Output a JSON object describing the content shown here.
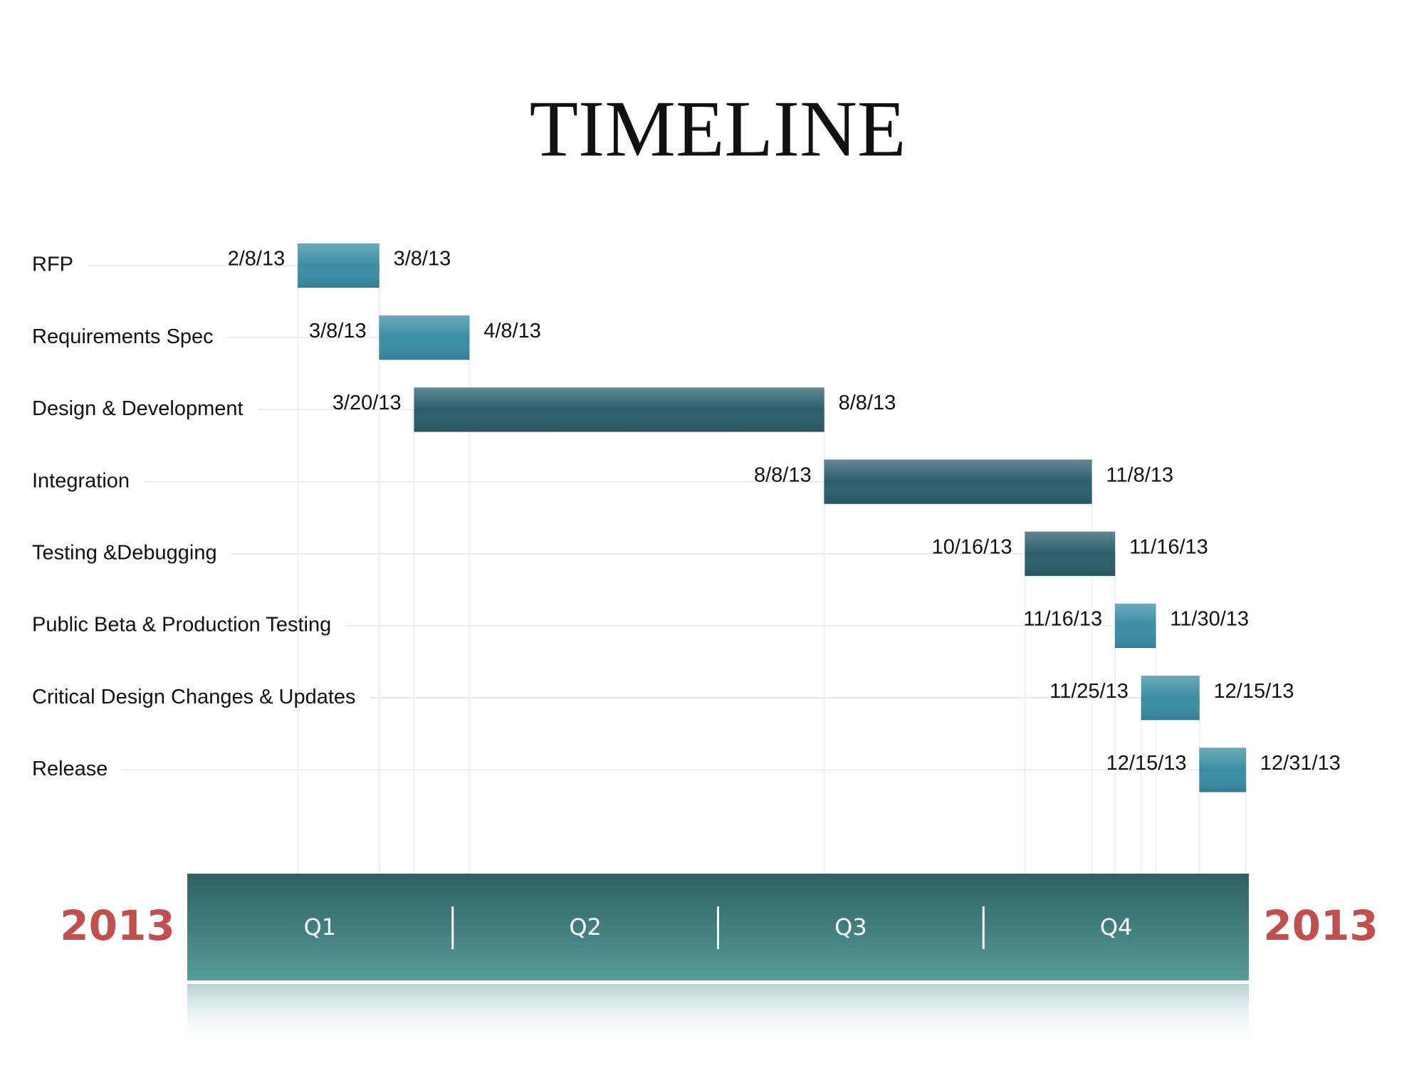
{
  "chart_data": {
    "type": "gantt",
    "title": "TIMELINE",
    "tasks": [
      {
        "name": "RFP",
        "start": "2/8/13",
        "end": "3/8/13",
        "color": "#3a8ea5"
      },
      {
        "name": "Requirements Spec",
        "start": "3/8/13",
        "end": "4/8/13",
        "color": "#3a8ea5"
      },
      {
        "name": "Design & Development",
        "start": "3/20/13",
        "end": "8/8/13",
        "color": "#2b5f6d"
      },
      {
        "name": "Integration",
        "start": "8/8/13",
        "end": "11/8/13",
        "color": "#2b5f6d"
      },
      {
        "name": "Testing &Debugging",
        "start": "10/16/13",
        "end": "11/16/13",
        "color": "#2b5f6d"
      },
      {
        "name": "Public Beta & Production Testing",
        "start": "11/16/13",
        "end": "11/30/13",
        "color": "#3a8ea5"
      },
      {
        "name": "Critical Design Changes & Updates",
        "start": "11/25/13",
        "end": "12/15/13",
        "color": "#3a8ea5"
      },
      {
        "name": "Release",
        "start": "12/15/13",
        "end": "12/31/13",
        "color": "#3a8ea5"
      }
    ],
    "quarters": [
      "Q1",
      "Q2",
      "Q3",
      "Q4"
    ],
    "year_labels": [
      "2013",
      "2013"
    ],
    "year_color": "#c0504d",
    "axis_color": "#3d7a7a"
  }
}
